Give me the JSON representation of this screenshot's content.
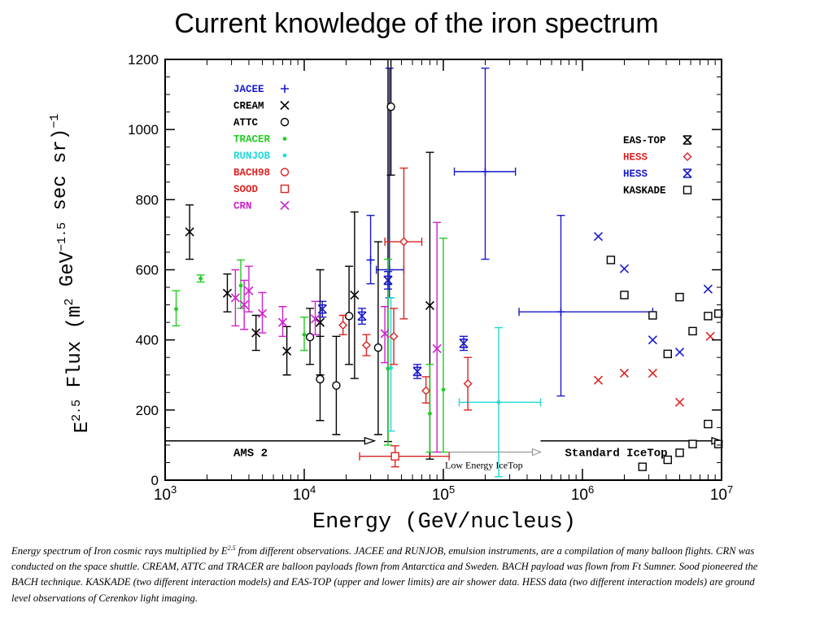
{
  "title": "Current knowledge of the iron spectrum",
  "caption": {
    "part1": "Energy spectrum of Iron cosmic rays multiplied by E",
    "sup": "2.5",
    "part2": " from different observations. JACEE and RUNJOB, emulsion instruments, are a compilation of many balloon flights. CRN was conducted on the space shuttle.  CREAM, ATTC and TRACER are balloon payloads flown from Antarctica and Sweden. BACH payload was flown from Ft Sumner. Sood  pioneered the BACH technique. KASKADE (two different interaction models) and EAS-TOP (upper and lower limits) are air shower data. HESS data (two different interaction models) are ground level observations of Cerenkov light imaging."
  },
  "chart_data": {
    "type": "scatter",
    "x_scale": "log",
    "xlim": [
      1000,
      10000000
    ],
    "ylim": [
      0,
      1200
    ],
    "xlabel": "Energy (GeV/nucleus)",
    "ylabel": "E^2.5 Flux (m^2 GeV^-1.5 sec sr)^-1",
    "x_ticks": [
      {
        "value": 1000,
        "base": "10",
        "exp": "3"
      },
      {
        "value": 10000,
        "base": "10",
        "exp": "4"
      },
      {
        "value": 100000,
        "base": "10",
        "exp": "5"
      },
      {
        "value": 1000000,
        "base": "10",
        "exp": "6"
      },
      {
        "value": 10000000,
        "base": "10",
        "exp": "7"
      }
    ],
    "y_ticks": [
      "0",
      "200",
      "400",
      "600",
      "800",
      "1000",
      "1200"
    ],
    "legend_left": [
      "JACEE",
      "CREAM",
      "ATTC",
      "TRACER",
      "RUNJOB",
      "BACH98",
      "SOOD",
      "CRN"
    ],
    "legend_right": [
      "EAS-TOP",
      "HESS",
      "HESS",
      "KASKADE"
    ],
    "series": [
      {
        "name": "JACEE",
        "color": "#1a1acc",
        "marker": "plus",
        "points": [
          {
            "x": 30000,
            "y": 628,
            "ylo": 560,
            "yhi": 755
          },
          {
            "x": 41000,
            "y": 600,
            "ylo": 520,
            "yhi": 1175,
            "xlo": 33000,
            "xhi": 52000
          },
          {
            "x": 200000,
            "y": 880,
            "ylo": 630,
            "yhi": 1175,
            "xlo": 120000,
            "xhi": 330000
          },
          {
            "x": 700000,
            "y": 480,
            "ylo": 240,
            "yhi": 755,
            "xlo": 350000,
            "xhi": 3200000
          }
        ]
      },
      {
        "name": "CREAM",
        "color": "#000000",
        "marker": "x",
        "points": [
          {
            "x": 1500,
            "y": 708,
            "ylo": 630,
            "yhi": 785
          },
          {
            "x": 2800,
            "y": 533,
            "ylo": 480,
            "yhi": 588
          },
          {
            "x": 4500,
            "y": 420,
            "ylo": 370,
            "yhi": 470
          },
          {
            "x": 7500,
            "y": 368,
            "ylo": 300,
            "yhi": 438
          },
          {
            "x": 13000,
            "y": 450,
            "ylo": 300,
            "yhi": 600
          },
          {
            "x": 23000,
            "y": 528,
            "ylo": 290,
            "yhi": 765
          },
          {
            "x": 40000,
            "y": 570,
            "ylo": 110,
            "yhi": 1200
          },
          {
            "x": 80000,
            "y": 498,
            "ylo": 60,
            "yhi": 935
          }
        ]
      },
      {
        "name": "ATTC",
        "color": "#000000",
        "marker": "circle",
        "points": [
          {
            "x": 11000,
            "y": 408,
            "ylo": 330,
            "yhi": 490
          },
          {
            "x": 13000,
            "y": 288,
            "ylo": 170,
            "yhi": 410
          },
          {
            "x": 17000,
            "y": 270,
            "ylo": 130,
            "yhi": 410
          },
          {
            "x": 21000,
            "y": 468,
            "ylo": 330,
            "yhi": 610
          },
          {
            "x": 34000,
            "y": 378,
            "ylo": 130,
            "yhi": 680
          },
          {
            "x": 42000,
            "y": 1065,
            "ylo": 870,
            "yhi": 1200
          }
        ]
      },
      {
        "name": "TRACER",
        "color": "#22cc22",
        "marker": "dot",
        "points": [
          {
            "x": 1200,
            "y": 488,
            "ylo": 440,
            "yhi": 540
          },
          {
            "x": 1800,
            "y": 575,
            "ylo": 565,
            "yhi": 585
          },
          {
            "x": 3500,
            "y": 555,
            "ylo": 490,
            "yhi": 628
          },
          {
            "x": 10000,
            "y": 415,
            "ylo": 370,
            "yhi": 465
          },
          {
            "x": 40000,
            "y": 318,
            "ylo": 100,
            "yhi": 630
          },
          {
            "x": 80000,
            "y": 190,
            "ylo": 80,
            "yhi": 330
          },
          {
            "x": 100000,
            "y": 258,
            "ylo": 80,
            "yhi": 690
          }
        ]
      },
      {
        "name": "RUNJOB",
        "color": "#22d8d8",
        "marker": "dot",
        "points": [
          {
            "x": 42000,
            "y": 320,
            "ylo": 140,
            "yhi": 520
          },
          {
            "x": 250000,
            "y": 222,
            "ylo": 10,
            "yhi": 435,
            "xlo": 130000,
            "xhi": 500000
          }
        ]
      },
      {
        "name": "BACH98",
        "color": "#dd2222",
        "marker": "diamond",
        "points": [
          {
            "x": 19000,
            "y": 442,
            "ylo": 415,
            "yhi": 470
          },
          {
            "x": 28000,
            "y": 385,
            "ylo": 355,
            "yhi": 415
          },
          {
            "x": 44000,
            "y": 410,
            "ylo": 330,
            "yhi": 490
          },
          {
            "x": 52000,
            "y": 680,
            "ylo": 460,
            "yhi": 890,
            "xlo": 38000,
            "xhi": 70000
          },
          {
            "x": 75000,
            "y": 255,
            "ylo": 220,
            "yhi": 295
          },
          {
            "x": 150000,
            "y": 275,
            "ylo": 200,
            "yhi": 350
          }
        ]
      },
      {
        "name": "SOOD",
        "color": "#dd2222",
        "marker": "square",
        "points": [
          {
            "x": 45000,
            "y": 68,
            "ylo": 38,
            "yhi": 98,
            "xlo": 25000,
            "xhi": 110000
          }
        ]
      },
      {
        "name": "CRN",
        "color": "#cc22cc",
        "marker": "x",
        "points": [
          {
            "x": 3200,
            "y": 520,
            "ylo": 440,
            "yhi": 600
          },
          {
            "x": 3700,
            "y": 500,
            "ylo": 430,
            "yhi": 570
          },
          {
            "x": 4000,
            "y": 540,
            "ylo": 480,
            "yhi": 610
          },
          {
            "x": 5000,
            "y": 475,
            "ylo": 420,
            "yhi": 535
          },
          {
            "x": 7000,
            "y": 450,
            "ylo": 410,
            "yhi": 495
          },
          {
            "x": 12000,
            "y": 460,
            "ylo": 415,
            "yhi": 510
          },
          {
            "x": 38000,
            "y": 418,
            "ylo": 335,
            "yhi": 495
          },
          {
            "x": 90000,
            "y": 375,
            "ylo": 80,
            "yhi": 735
          }
        ]
      },
      {
        "name": "EAS-TOP",
        "color": "#1a1acc",
        "marker": "boxx",
        "points": [
          {
            "x": 13500,
            "y": 488,
            "ylo": 465,
            "yhi": 510
          },
          {
            "x": 26000,
            "y": 468,
            "ylo": 445,
            "yhi": 490
          },
          {
            "x": 40000,
            "y": 570,
            "ylo": 545,
            "yhi": 595
          },
          {
            "x": 65000,
            "y": 310,
            "ylo": 290,
            "yhi": 330
          },
          {
            "x": 140000,
            "y": 390,
            "ylo": 370,
            "yhi": 410
          }
        ]
      },
      {
        "name": "HESS",
        "color": "#dd2222",
        "marker": "x",
        "points": [
          {
            "x": 1300000,
            "y": 285
          },
          {
            "x": 2000000,
            "y": 305
          },
          {
            "x": 3200000,
            "y": 305
          },
          {
            "x": 5000000,
            "y": 222
          },
          {
            "x": 8300000,
            "y": 410
          }
        ]
      },
      {
        "name": "HESS",
        "color": "#1a1acc",
        "marker": "x",
        "points": [
          {
            "x": 1300000,
            "y": 695
          },
          {
            "x": 2000000,
            "y": 603
          },
          {
            "x": 3200000,
            "y": 400
          },
          {
            "x": 5000000,
            "y": 365
          },
          {
            "x": 8000000,
            "y": 545
          }
        ]
      },
      {
        "name": "KASKADE",
        "color": "#000000",
        "marker": "square",
        "points": [
          {
            "x": 1600000,
            "y": 628
          },
          {
            "x": 2000000,
            "y": 528
          },
          {
            "x": 3200000,
            "y": 470
          },
          {
            "x": 4100000,
            "y": 360
          },
          {
            "x": 5000000,
            "y": 522
          },
          {
            "x": 6200000,
            "y": 425
          },
          {
            "x": 8000000,
            "y": 468
          },
          {
            "x": 9500000,
            "y": 475
          },
          {
            "x": 8000000,
            "y": 160
          },
          {
            "x": 6200000,
            "y": 103
          },
          {
            "x": 9500000,
            "y": 103
          },
          {
            "x": 5000000,
            "y": 78
          },
          {
            "x": 4100000,
            "y": 58
          },
          {
            "x": 2700000,
            "y": 38
          }
        ]
      }
    ],
    "reference_lines": [
      {
        "label": "AMS 2",
        "x_from": 1000,
        "x_to": 32000,
        "y": 112,
        "style": "solid"
      },
      {
        "label": "Low Energy IceTop",
        "x_from": 100000,
        "x_to": 500000,
        "y": 80,
        "style": "open"
      },
      {
        "label": "Standard IceTop",
        "x_from": 500000,
        "x_to": 10000000,
        "y": 112,
        "style": "solid"
      }
    ]
  }
}
